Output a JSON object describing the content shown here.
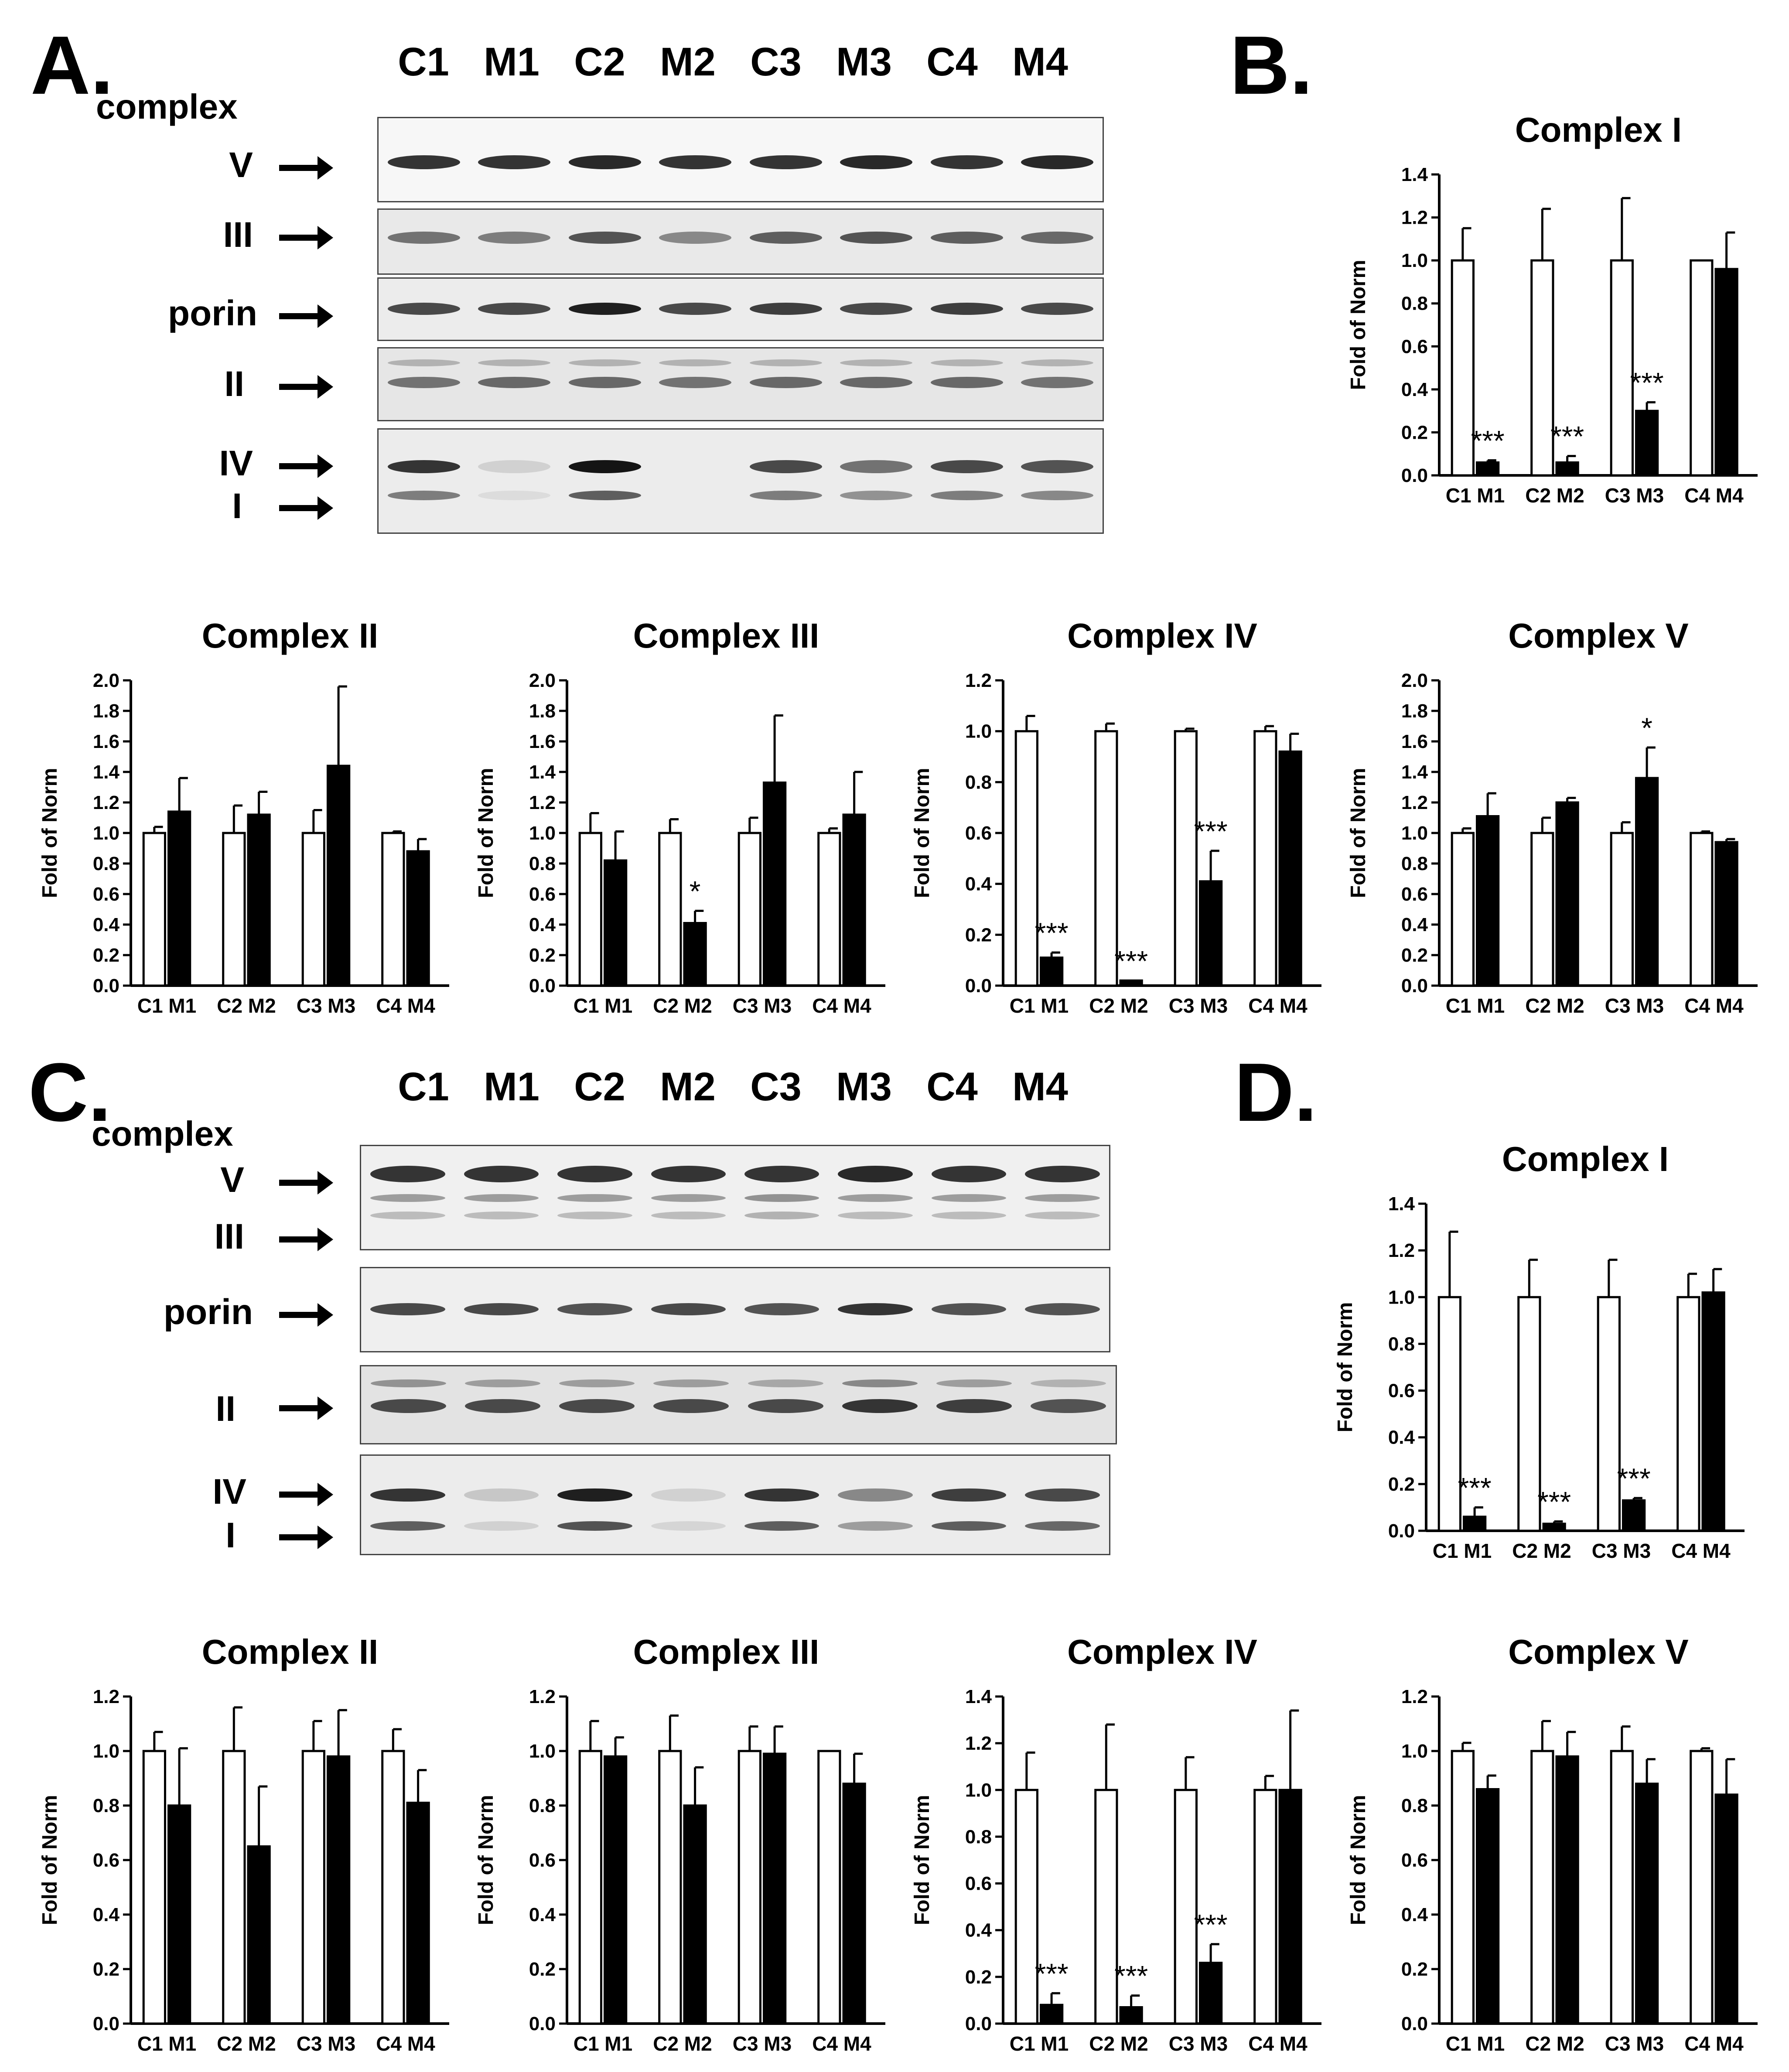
{
  "panels": {
    "A": {
      "label": "A.",
      "lanes": [
        "C1",
        "M1",
        "C2",
        "M2",
        "C3",
        "M3",
        "C4",
        "M4"
      ],
      "complex_word": "complex",
      "rows": [
        "V",
        "III",
        "porin",
        "II",
        "IV",
        "I"
      ]
    },
    "B": {
      "label": "B."
    },
    "C": {
      "label": "C.",
      "lanes": [
        "C1",
        "M1",
        "C2",
        "M2",
        "C3",
        "M3",
        "C4",
        "M4"
      ],
      "complex_word": "complex",
      "rows": [
        "V",
        "III",
        "porin",
        "II",
        "IV",
        "I"
      ]
    },
    "D": {
      "label": "D."
    }
  },
  "colors": {
    "control": "#ffffff",
    "mutant": "#000000",
    "axis": "#000000"
  },
  "chart_data": [
    {
      "id": "A-I",
      "type": "bar",
      "title": "Complex I",
      "ylabel": "Fold of Norm",
      "ylim": [
        0,
        1.4
      ],
      "ytick_step": 0.2,
      "groups": [
        "C1 M1",
        "C2 M2",
        "C3 M3",
        "C4 M4"
      ],
      "categories": [
        "C1",
        "M1",
        "C2",
        "M2",
        "C3",
        "M3",
        "C4",
        "M4"
      ],
      "values": [
        1.0,
        0.06,
        1.0,
        0.06,
        1.0,
        0.3,
        1.0,
        0.96
      ],
      "errors": [
        0.15,
        0.01,
        0.24,
        0.03,
        0.29,
        0.04,
        0.0,
        0.17
      ],
      "significance": [
        "",
        "***",
        "",
        "***",
        "",
        "***",
        "",
        ""
      ]
    },
    {
      "id": "A-II",
      "type": "bar",
      "title": "Complex II",
      "ylabel": "Fold of Norm",
      "ylim": [
        0,
        2.0
      ],
      "ytick_step": 0.2,
      "groups": [
        "C1 M1",
        "C2 M2",
        "C3 M3",
        "C4 M4"
      ],
      "categories": [
        "C1",
        "M1",
        "C2",
        "M2",
        "C3",
        "M3",
        "C4",
        "M4"
      ],
      "values": [
        1.0,
        1.14,
        1.0,
        1.12,
        1.0,
        1.44,
        1.0,
        0.88
      ],
      "errors": [
        0.04,
        0.22,
        0.18,
        0.15,
        0.15,
        0.52,
        0.01,
        0.08
      ],
      "significance": [
        "",
        "",
        "",
        "",
        "",
        "",
        "",
        ""
      ]
    },
    {
      "id": "A-III",
      "type": "bar",
      "title": "Complex III",
      "ylabel": "Fold of Norm",
      "ylim": [
        0,
        2.0
      ],
      "ytick_step": 0.2,
      "groups": [
        "C1 M1",
        "C2 M2",
        "C3 M3",
        "C4 M4"
      ],
      "categories": [
        "C1",
        "M1",
        "C2",
        "M2",
        "C3",
        "M3",
        "C4",
        "M4"
      ],
      "values": [
        1.0,
        0.82,
        1.0,
        0.41,
        1.0,
        1.33,
        1.0,
        1.12
      ],
      "errors": [
        0.13,
        0.19,
        0.09,
        0.08,
        0.1,
        0.44,
        0.03,
        0.28
      ],
      "significance": [
        "",
        "",
        "",
        "*",
        "",
        "",
        "",
        ""
      ]
    },
    {
      "id": "A-IV",
      "type": "bar",
      "title": "Complex IV",
      "ylabel": "Fold of Norm",
      "ylim": [
        0,
        1.2
      ],
      "ytick_step": 0.2,
      "groups": [
        "C1 M1",
        "C2 M2",
        "C3 M3",
        "C4 M4"
      ],
      "categories": [
        "C1",
        "M1",
        "C2",
        "M2",
        "C3",
        "M3",
        "C4",
        "M4"
      ],
      "values": [
        1.0,
        0.11,
        1.0,
        0.02,
        1.0,
        0.41,
        1.0,
        0.92
      ],
      "errors": [
        0.06,
        0.02,
        0.03,
        0.0,
        0.01,
        0.12,
        0.02,
        0.07
      ],
      "significance": [
        "",
        "***",
        "",
        "***",
        "",
        "***",
        "",
        ""
      ]
    },
    {
      "id": "A-V",
      "type": "bar",
      "title": "Complex V",
      "ylabel": "Fold of Norm",
      "ylim": [
        0,
        2.0
      ],
      "ytick_step": 0.2,
      "groups": [
        "C1 M1",
        "C2 M2",
        "C3 M3",
        "C4 M4"
      ],
      "categories": [
        "C1",
        "M1",
        "C2",
        "M2",
        "C3",
        "M3",
        "C4",
        "M4"
      ],
      "values": [
        1.0,
        1.11,
        1.0,
        1.2,
        1.0,
        1.36,
        1.0,
        0.94
      ],
      "errors": [
        0.03,
        0.15,
        0.1,
        0.03,
        0.07,
        0.2,
        0.01,
        0.02
      ],
      "significance": [
        "",
        "",
        "",
        "",
        "",
        "*",
        "",
        ""
      ]
    },
    {
      "id": "D-I",
      "type": "bar",
      "title": "Complex I",
      "ylabel": "Fold of Norm",
      "ylim": [
        0,
        1.4
      ],
      "ytick_step": 0.2,
      "groups": [
        "C1 M1",
        "C2 M2",
        "C3 M3",
        "C4 M4"
      ],
      "categories": [
        "C1",
        "M1",
        "C2",
        "M2",
        "C3",
        "M3",
        "C4",
        "M4"
      ],
      "values": [
        1.0,
        0.06,
        1.0,
        0.03,
        1.0,
        0.13,
        1.0,
        1.02
      ],
      "errors": [
        0.28,
        0.04,
        0.16,
        0.01,
        0.16,
        0.01,
        0.1,
        0.1
      ],
      "significance": [
        "",
        "***",
        "",
        "***",
        "",
        "***",
        "",
        ""
      ]
    },
    {
      "id": "C-II",
      "type": "bar",
      "title": "Complex II",
      "ylabel": "Fold of Norm",
      "ylim": [
        0,
        1.2
      ],
      "ytick_step": 0.2,
      "groups": [
        "C1 M1",
        "C2 M2",
        "C3 M3",
        "C4 M4"
      ],
      "categories": [
        "C1",
        "M1",
        "C2",
        "M2",
        "C3",
        "M3",
        "C4",
        "M4"
      ],
      "values": [
        1.0,
        0.8,
        1.0,
        0.65,
        1.0,
        0.98,
        1.0,
        0.81
      ],
      "errors": [
        0.07,
        0.21,
        0.16,
        0.22,
        0.11,
        0.17,
        0.08,
        0.12
      ],
      "significance": [
        "",
        "",
        "",
        "",
        "",
        "",
        "",
        ""
      ]
    },
    {
      "id": "C-III",
      "type": "bar",
      "title": "Complex III",
      "ylabel": "Fold of Norm",
      "ylim": [
        0,
        1.2
      ],
      "ytick_step": 0.2,
      "groups": [
        "C1 M1",
        "C2 M2",
        "C3 M3",
        "C4 M4"
      ],
      "categories": [
        "C1",
        "M1",
        "C2",
        "M2",
        "C3",
        "M3",
        "C4",
        "M4"
      ],
      "values": [
        1.0,
        0.98,
        1.0,
        0.8,
        1.0,
        0.99,
        1.0,
        0.88
      ],
      "errors": [
        0.11,
        0.07,
        0.13,
        0.14,
        0.09,
        0.1,
        0.0,
        0.11
      ],
      "significance": [
        "",
        "",
        "",
        "",
        "",
        "",
        "",
        ""
      ]
    },
    {
      "id": "C-IV",
      "type": "bar",
      "title": "Complex IV",
      "ylabel": "Fold of Norm",
      "ylim": [
        0,
        1.4
      ],
      "ytick_step": 0.2,
      "groups": [
        "C1 M1",
        "C2 M2",
        "C3 M3",
        "C4 M4"
      ],
      "categories": [
        "C1",
        "M1",
        "C2",
        "M2",
        "C3",
        "M3",
        "C4",
        "M4"
      ],
      "values": [
        1.0,
        0.08,
        1.0,
        0.07,
        1.0,
        0.26,
        1.0,
        1.0
      ],
      "errors": [
        0.16,
        0.05,
        0.28,
        0.05,
        0.14,
        0.08,
        0.06,
        0.34
      ],
      "significance": [
        "",
        "***",
        "",
        "***",
        "",
        "***",
        "",
        ""
      ]
    },
    {
      "id": "C-V",
      "type": "bar",
      "title": "Complex V",
      "ylabel": "Fold of Norm",
      "ylim": [
        0,
        1.2
      ],
      "ytick_step": 0.2,
      "groups": [
        "C1 M1",
        "C2 M2",
        "C3 M3",
        "C4 M4"
      ],
      "categories": [
        "C1",
        "M1",
        "C2",
        "M2",
        "C3",
        "M3",
        "C4",
        "M4"
      ],
      "values": [
        1.0,
        0.86,
        1.0,
        0.98,
        1.0,
        0.88,
        1.0,
        0.84
      ],
      "errors": [
        0.03,
        0.05,
        0.11,
        0.09,
        0.09,
        0.09,
        0.01,
        0.13
      ],
      "significance": [
        "",
        "",
        "",
        "",
        "",
        "",
        "",
        ""
      ]
    }
  ]
}
